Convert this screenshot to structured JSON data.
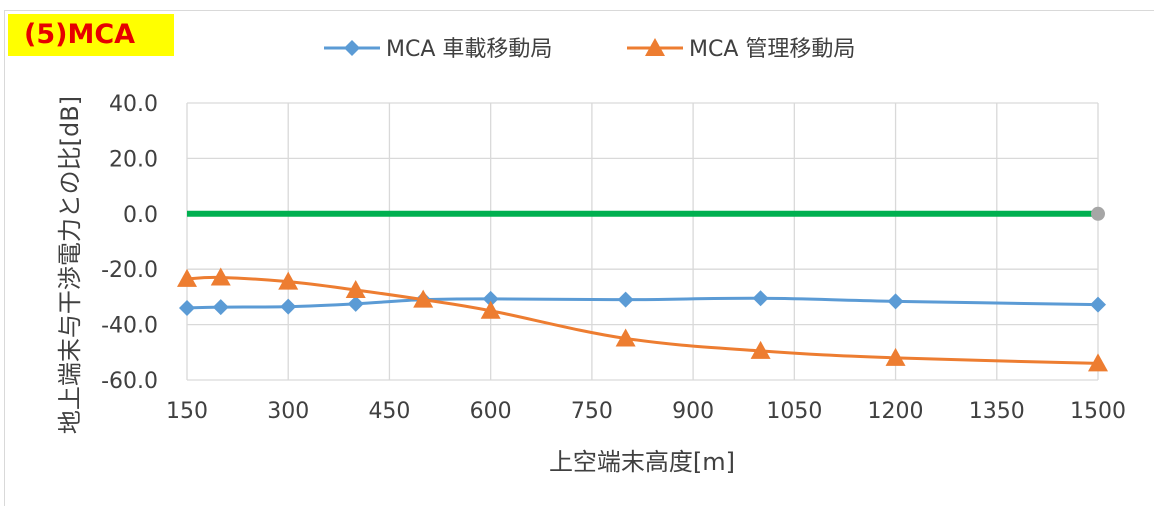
{
  "badge": "(5)MCA",
  "chart_data": {
    "type": "line",
    "title": "",
    "xlabel": "上空端末高度[m]",
    "ylabel": "地上端末与干渉電力との比[dB]",
    "x_ticks": [
      "150",
      "300",
      "450",
      "600",
      "750",
      "900",
      "1050",
      "1200",
      "1350",
      "1500"
    ],
    "xlim": [
      150,
      1500
    ],
    "y_ticks": [
      "40.0",
      "20.0",
      "0.0",
      "-20.0",
      "-40.0",
      "-60.0"
    ],
    "ylim": [
      -60,
      40
    ],
    "grid": true,
    "legend_position": "top",
    "series": [
      {
        "name": "MCA 車載移動局",
        "color": "#5b9bd5",
        "marker": "diamond",
        "x": [
          150,
          200,
          300,
          400,
          500,
          600,
          800,
          1000,
          1200,
          1500
        ],
        "y": [
          -34.0,
          -33.7,
          -33.5,
          -32.5,
          -31.0,
          -30.7,
          -31.0,
          -30.5,
          -31.6,
          -32.8
        ]
      },
      {
        "name": "MCA 管理移動局",
        "color": "#ed7d31",
        "marker": "triangle",
        "x": [
          150,
          200,
          300,
          400,
          500,
          600,
          800,
          1000,
          1200,
          1500
        ],
        "y": [
          -23.5,
          -23.0,
          -24.5,
          -27.5,
          -31.0,
          -35.0,
          -45.0,
          -49.5,
          -52.0,
          -54.0
        ]
      },
      {
        "name": "",
        "color": "#00b050",
        "marker": "none",
        "end_marker_color": "#a6a6a6",
        "x": [
          150,
          1500
        ],
        "y": [
          0,
          0
        ]
      }
    ]
  }
}
